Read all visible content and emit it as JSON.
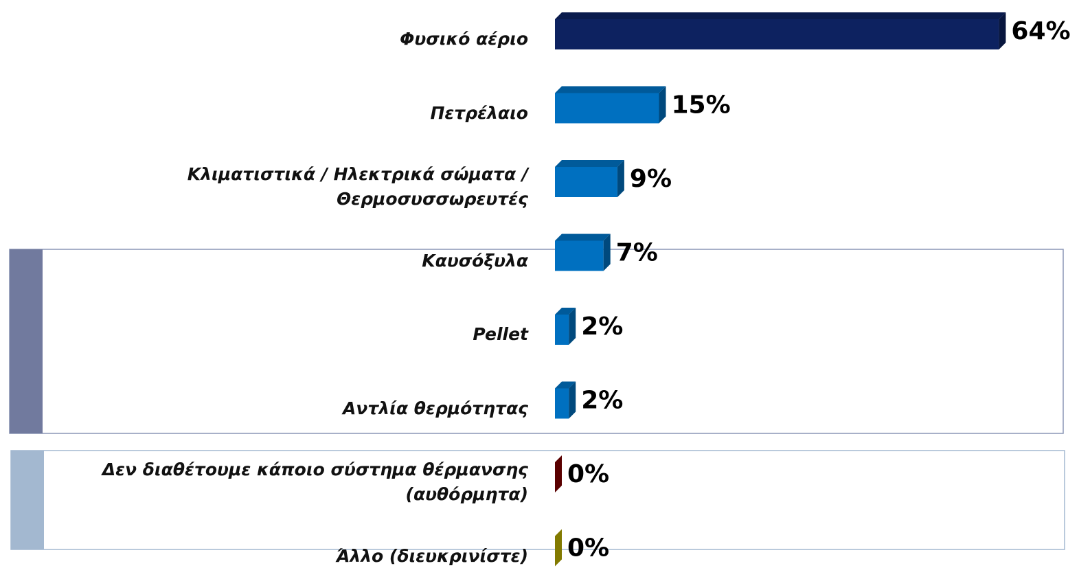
{
  "chart_data": {
    "type": "bar",
    "orientation": "horizontal",
    "categories": [
      "Φυσικό αέριο",
      "Πετρέλαιο",
      "Κλιματιστικά / Ηλεκτρικά σώματα / Θερμοσυσσωρευτές",
      "Καυσόξυλα",
      "Pellet",
      "Αντλία θερμότητας",
      "Δεν διαθέτουμε κάποιο σύστημα  θέρμανσης\n(αυθόρμητα)",
      "Άλλο (διευκρινίστε)"
    ],
    "values": [
      64,
      15,
      9,
      7,
      2,
      2,
      0,
      0
    ],
    "value_labels": [
      "64%",
      "15%",
      "9%",
      "7%",
      "2%",
      "2%",
      "0%",
      "0%"
    ],
    "colors": [
      "#0d2260",
      "#0070c0",
      "#0070c0",
      "#0070c0",
      "#0070c0",
      "#0070c0",
      "#8b0000",
      "#c8bc00"
    ],
    "xlim": [
      0,
      70
    ]
  }
}
